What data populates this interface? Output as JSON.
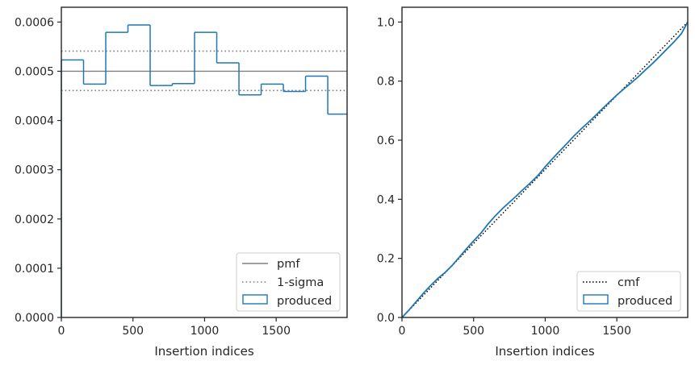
{
  "chart_data": [
    {
      "type": "step",
      "xlabel": "Insertion indices",
      "ylabel": "",
      "xlim": [
        0,
        1995
      ],
      "ylim": [
        0,
        0.00063
      ],
      "xticks": [
        0,
        500,
        1000,
        1500
      ],
      "xtick_labels": [
        "0",
        "500",
        "1000",
        "1500"
      ],
      "yticks": [
        0,
        0.0001,
        0.0002,
        0.0003,
        0.0004,
        0.0005,
        0.0006
      ],
      "ytick_labels": [
        "0.0000",
        "0.0001",
        "0.0002",
        "0.0003",
        "0.0004",
        "0.0005",
        "0.0006"
      ],
      "grid": false,
      "legend_position": "lower-right",
      "pmf": 0.0005,
      "sigma_upper": 0.000541,
      "sigma_lower": 0.000461,
      "bin_edges": [
        0,
        155,
        310,
        465,
        620,
        775,
        930,
        1085,
        1240,
        1395,
        1550,
        1705,
        1860,
        1995
      ],
      "produced": [
        0.000523,
        0.000474,
        0.000579,
        0.000594,
        0.000471,
        0.000475,
        0.000579,
        0.000517,
        0.000452,
        0.000474,
        0.000459,
        0.00049,
        0.000413
      ],
      "series": [
        {
          "name": "pmf",
          "color": "#808080",
          "style": "solid"
        },
        {
          "name": "1-sigma",
          "color": "#808080",
          "style": "dotted"
        },
        {
          "name": "produced",
          "color": "#1f77b4",
          "style": "step"
        }
      ]
    },
    {
      "type": "line",
      "xlabel": "Insertion indices",
      "ylabel": "",
      "xlim": [
        0,
        1995
      ],
      "ylim": [
        0,
        1.05
      ],
      "xticks": [
        0,
        500,
        1000,
        1500
      ],
      "xtick_labels": [
        "0",
        "500",
        "1000",
        "1500"
      ],
      "yticks": [
        0,
        0.2,
        0.4,
        0.6,
        0.8,
        1.0
      ],
      "ytick_labels": [
        "0.0",
        "0.2",
        "0.4",
        "0.6",
        "0.8",
        "1.0"
      ],
      "grid": false,
      "legend_position": "lower-right",
      "x": [
        0,
        50,
        100,
        150,
        200,
        250,
        300,
        350,
        400,
        450,
        500,
        550,
        600,
        650,
        700,
        750,
        800,
        850,
        900,
        950,
        1000,
        1050,
        1100,
        1150,
        1200,
        1250,
        1300,
        1350,
        1400,
        1450,
        1500,
        1550,
        1600,
        1650,
        1700,
        1750,
        1800,
        1850,
        1900,
        1950,
        1995
      ],
      "produced": [
        0.0,
        0.026,
        0.054,
        0.082,
        0.108,
        0.132,
        0.152,
        0.176,
        0.204,
        0.232,
        0.259,
        0.285,
        0.316,
        0.343,
        0.368,
        0.39,
        0.412,
        0.435,
        0.457,
        0.481,
        0.51,
        0.537,
        0.563,
        0.588,
        0.614,
        0.638,
        0.66,
        0.683,
        0.707,
        0.73,
        0.753,
        0.774,
        0.794,
        0.815,
        0.838,
        0.86,
        0.884,
        0.909,
        0.933,
        0.96,
        1.0
      ],
      "cmf": [
        0,
        1.0
      ],
      "series": [
        {
          "name": "cmf",
          "color": "#000000",
          "style": "dotted"
        },
        {
          "name": "produced",
          "color": "#1f77b4",
          "style": "step"
        }
      ]
    }
  ]
}
